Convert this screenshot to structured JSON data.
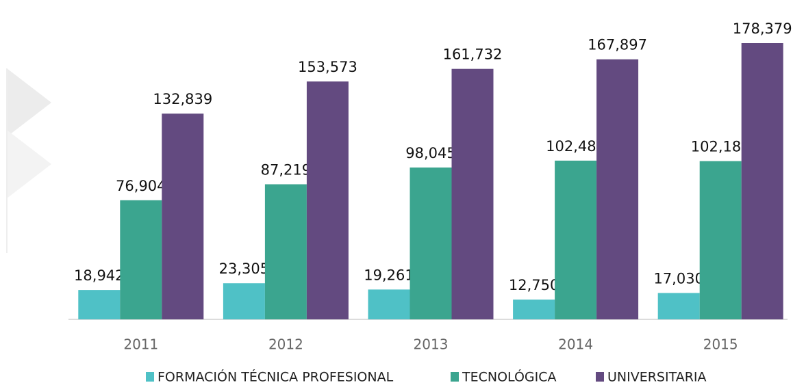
{
  "chart_data": {
    "type": "bar",
    "categories": [
      "2011",
      "2012",
      "2013",
      "2014",
      "2015"
    ],
    "series": [
      {
        "name": "FORMACIÓN TÉCNICA PROFESIONAL",
        "color": "#4fc1c6",
        "values": [
          18942,
          23305,
          19261,
          12750,
          17030
        ],
        "value_labels": [
          "18,942",
          "23,305",
          "19,261",
          "12,750",
          "17,030"
        ]
      },
      {
        "name": "TECNOLÓGICA",
        "color": "#3ba58f",
        "values": [
          76904,
          87219,
          98045,
          102486,
          102185
        ],
        "value_labels": [
          "76,904",
          "87,219",
          "98,045",
          "102,486",
          "102,185"
        ]
      },
      {
        "name": "UNIVERSITARIA",
        "color": "#634a80",
        "values": [
          132839,
          153573,
          161732,
          167897,
          178379
        ],
        "value_labels": [
          "132,839",
          "153,573",
          "161,732",
          "167,897",
          "178,379"
        ]
      }
    ],
    "legend": "bottom"
  }
}
